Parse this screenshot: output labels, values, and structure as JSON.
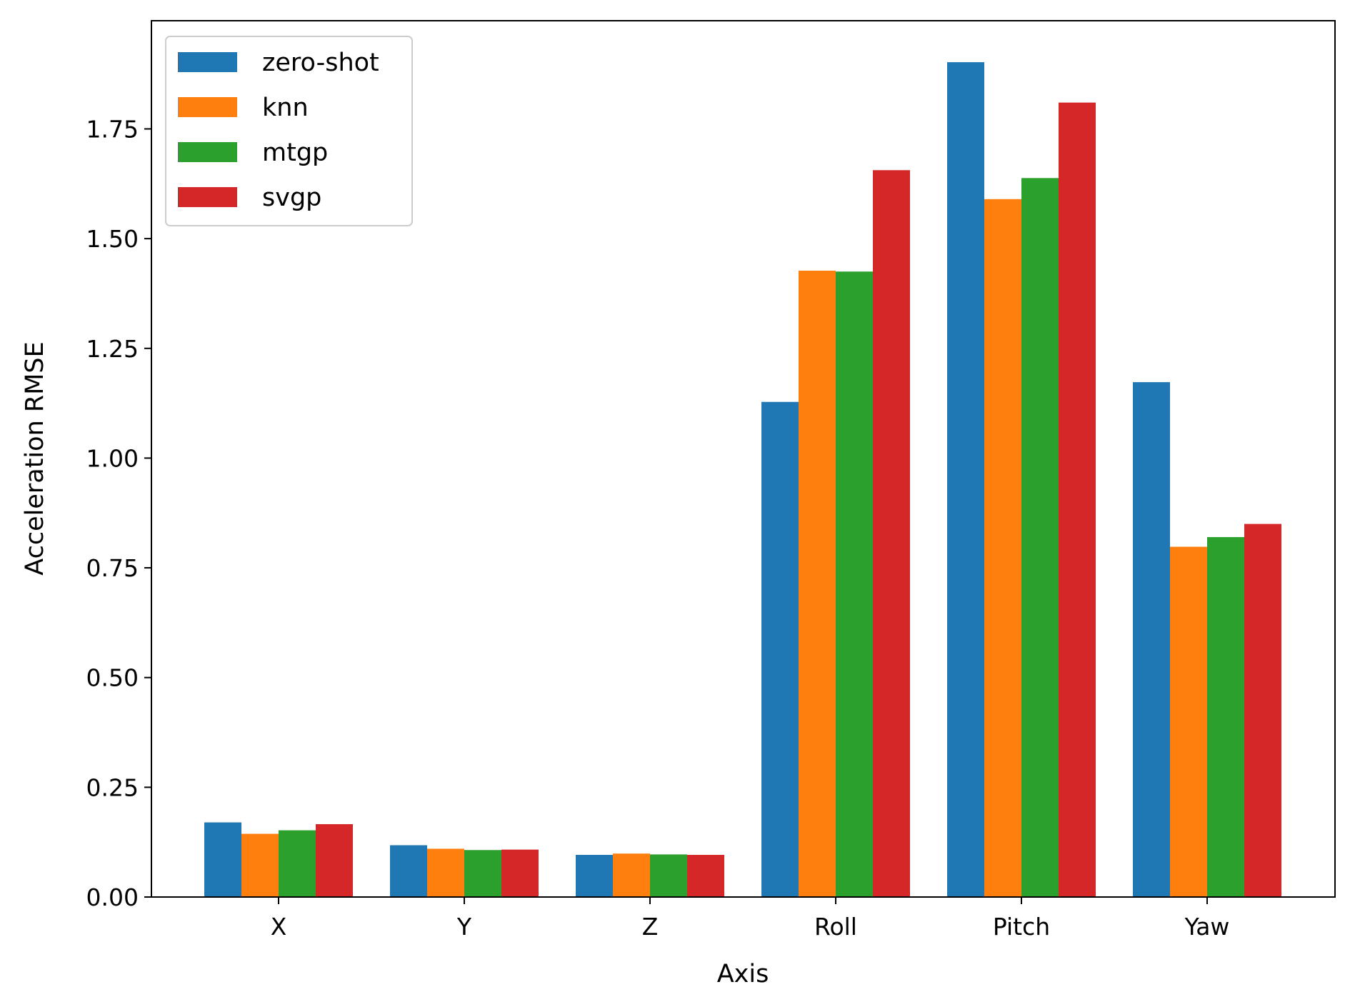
{
  "chart_data": {
    "type": "bar",
    "title": "",
    "xlabel": "Axis",
    "ylabel": "Acceleration RMSE",
    "categories": [
      "X",
      "Y",
      "Z",
      "Roll",
      "Pitch",
      "Yaw"
    ],
    "series": [
      {
        "name": "zero-shot",
        "color": "#1f77b4",
        "values": [
          0.17,
          0.118,
          0.096,
          1.128,
          1.902,
          1.173
        ]
      },
      {
        "name": "knn",
        "color": "#ff7f0e",
        "values": [
          0.144,
          0.11,
          0.099,
          1.427,
          1.59,
          0.798
        ]
      },
      {
        "name": "mtgp",
        "color": "#2ca02c",
        "values": [
          0.152,
          0.107,
          0.097,
          1.425,
          1.638,
          0.82
        ]
      },
      {
        "name": "svgp",
        "color": "#d62728",
        "values": [
          0.166,
          0.108,
          0.096,
          1.656,
          1.81,
          0.85
        ]
      }
    ],
    "ylim": [
      0,
      1.9965
    ],
    "yticks": [
      "0.00",
      "0.25",
      "0.50",
      "0.75",
      "1.00",
      "1.25",
      "1.50",
      "1.75"
    ],
    "legend": "top-left",
    "grid": false
  }
}
